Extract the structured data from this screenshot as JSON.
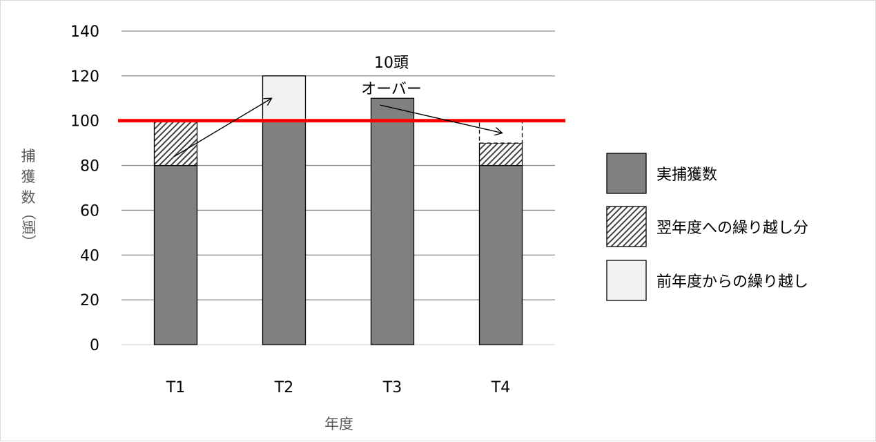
{
  "chart_data": {
    "type": "bar",
    "stacked": true,
    "categories": [
      "T1",
      "T2",
      "T3",
      "T4"
    ],
    "series": [
      {
        "name": "実捕獲数",
        "values": [
          80,
          100,
          110,
          80
        ],
        "color": "#808080",
        "pattern": "solid"
      },
      {
        "name": "翌年度への繰り越し分",
        "values": [
          20,
          0,
          0,
          10
        ],
        "color": "#404040",
        "pattern": "hatch"
      },
      {
        "name": "前年度からの繰り越し",
        "values": [
          0,
          20,
          0,
          10
        ],
        "color": "#f2f2f2",
        "pattern": "light"
      }
    ],
    "reference_line": {
      "value": 100,
      "color": "#ff0000"
    },
    "ylim": [
      0,
      140
    ],
    "yticks": [
      "0",
      "20",
      "40",
      "60",
      "80",
      "100",
      "120",
      "140"
    ],
    "xlabel": "年度",
    "ylabel": [
      "捕",
      "獲",
      "数",
      "（頭）"
    ],
    "annotation": {
      "line1": "10頭",
      "line2": "オーバー"
    },
    "legend_position": "right",
    "grid": true
  }
}
